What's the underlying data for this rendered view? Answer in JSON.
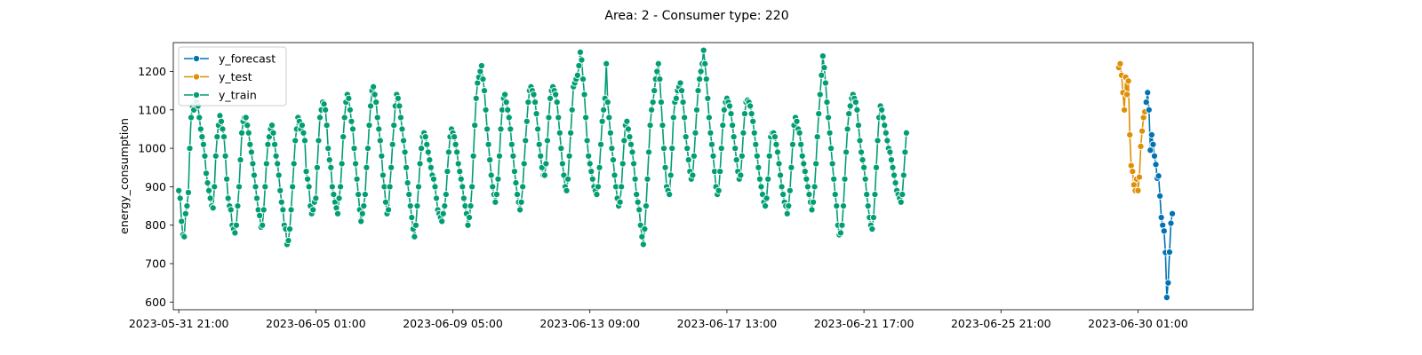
{
  "chart_data": {
    "type": "line",
    "title": "Area: 2 - Consumer type: 220",
    "xlabel": "",
    "ylabel": "energy_consumption",
    "x_type": "datetime",
    "x_tick_labels": [
      "2023-05-31 21:00",
      "2023-06-05 01:00",
      "2023-06-09 05:00",
      "2023-06-13 09:00",
      "2023-06-17 13:00",
      "2023-06-21 17:00",
      "2023-06-25 21:00",
      "2023-06-30 01:00"
    ],
    "xlim": [
      "2023-05-31 17:00",
      "2023-07-03 13:00"
    ],
    "ylim": [
      580,
      1275
    ],
    "y_ticks": [
      600,
      700,
      800,
      900,
      1000,
      1100,
      1200
    ],
    "legend_position": "upper-left",
    "grid": false,
    "series": [
      {
        "name": "y_forecast",
        "color": "#0173b2",
        "marker": "circle",
        "x_start": "2023-06-30 07:00",
        "x_step_hours": 1,
        "values": [
          1120,
          1145,
          1100,
          995,
          1035,
          1010,
          980,
          958,
          922,
          928,
          876,
          820,
          800,
          785,
          729,
          612,
          650,
          730,
          805,
          830
        ]
      },
      {
        "name": "y_test",
        "color": "#de8f05",
        "marker": "circle",
        "x_start": "2023-06-29 11:00",
        "x_step_hours": 1,
        "values": [
          1210,
          1220,
          1190,
          1145,
          1100,
          1185,
          1140,
          1175,
          1035,
          955,
          940,
          905,
          890,
          920,
          890,
          925,
          1005,
          1045,
          1080,
          1095
        ]
      },
      {
        "name": "y_train",
        "color": "#029e73",
        "marker": "circle",
        "x_start": "2023-05-31 21:00",
        "x_step_hours": 1,
        "values": [
          890,
          870,
          810,
          775,
          770,
          830,
          850,
          885,
          1000,
          1080,
          1110,
          1100,
          1115,
          1120,
          1110,
          1080,
          1050,
          1030,
          1010,
          980,
          935,
          910,
          890,
          870,
          850,
          845,
          900,
          980,
          1030,
          1060,
          1085,
          1070,
          1050,
          1030,
          980,
          920,
          870,
          850,
          840,
          800,
          790,
          780,
          800,
          850,
          900,
          970,
          1040,
          1070,
          1080,
          1080,
          1060,
          1040,
          1010,
          990,
          960,
          930,
          900,
          870,
          840,
          825,
          795,
          800,
          840,
          900,
          960,
          1010,
          1030,
          1050,
          1060,
          1040,
          1010,
          980,
          960,
          930,
          890,
          860,
          840,
          800,
          790,
          750,
          760,
          790,
          840,
          900,
          960,
          1020,
          1050,
          1080,
          1070,
          1050,
          1060,
          1040,
          1020,
          940,
          920,
          900,
          850,
          830,
          840,
          860,
          870,
          950,
          1020,
          1080,
          1100,
          1120,
          1115,
          1100,
          1060,
          1000,
          970,
          950,
          900,
          880,
          860,
          845,
          830,
          870,
          900,
          960,
          1030,
          1080,
          1120,
          1140,
          1130,
          1100,
          1070,
          1050,
          1000,
          960,
          920,
          880,
          840,
          810,
          830,
          850,
          880,
          950,
          1000,
          1060,
          1110,
          1150,
          1160,
          1140,
          1120,
          1080,
          1050,
          1020,
          980,
          930,
          900,
          860,
          830,
          840,
          900,
          950,
          1010,
          1060,
          1110,
          1140,
          1130,
          1110,
          1080,
          1050,
          1020,
          990,
          950,
          910,
          880,
          850,
          820,
          790,
          770,
          800,
          850,
          900,
          960,
          1000,
          1030,
          1040,
          1030,
          1010,
          990,
          970,
          950,
          930,
          920,
          900,
          870,
          840,
          830,
          820,
          810,
          830,
          850,
          880,
          940,
          990,
          1030,
          1050,
          1040,
          1030,
          1010,
          990,
          960,
          940,
          920,
          900,
          870,
          850,
          830,
          800,
          820,
          850,
          900,
          980,
          1060,
          1130,
          1170,
          1185,
          1200,
          1215,
          1180,
          1150,
          1100,
          1050,
          1010,
          970,
          930,
          900,
          880,
          860,
          880,
          920,
          980,
          1050,
          1100,
          1130,
          1140,
          1120,
          1100,
          1080,
          1050,
          1010,
          980,
          940,
          910,
          880,
          860,
          840,
          860,
          900,
          960,
          1020,
          1070,
          1120,
          1150,
          1160,
          1150,
          1140,
          1120,
          1090,
          1050,
          1010,
          980,
          950,
          930,
          930,
          960,
          1020,
          1080,
          1130,
          1150,
          1160,
          1150,
          1140,
          1120,
          1080,
          1040,
          1000,
          960,
          930,
          900,
          890,
          920,
          980,
          1040,
          1100,
          1160,
          1170,
          1180,
          1190,
          1215,
          1250,
          1230,
          1180,
          1140,
          1080,
          1020,
          980,
          960,
          940,
          920,
          900,
          890,
          880,
          900,
          950,
          1010,
          1070,
          1100,
          1130,
          1220,
          1120,
          1080,
          1040,
          1000,
          970,
          930,
          900,
          870,
          850,
          860,
          900,
          960,
          1020,
          1060,
          1070,
          1050,
          1030,
          1010,
          990,
          960,
          920,
          880,
          860,
          840,
          800,
          770,
          750,
          790,
          850,
          920,
          990,
          1060,
          1100,
          1120,
          1150,
          1180,
          1200,
          1220,
          1180,
          1120,
          1060,
          1000,
          950,
          900,
          890,
          880,
          930,
          1000,
          1080,
          1120,
          1130,
          1150,
          1160,
          1170,
          1150,
          1120,
          1080,
          1030,
          1000,
          970,
          940,
          920,
          930,
          980,
          1040,
          1100,
          1150,
          1180,
          1200,
          1220,
          1255,
          1220,
          1180,
          1130,
          1080,
          1040,
          1010,
          980,
          940,
          900,
          880,
          890,
          940,
          1000,
          1060,
          1100,
          1120,
          1130,
          1120,
          1110,
          1090,
          1060,
          1030,
          1000,
          970,
          940,
          920,
          930,
          980,
          1040,
          1090,
          1120,
          1125,
          1120,
          1110,
          1090,
          1070,
          1040,
          1010,
          980,
          950,
          920,
          900,
          880,
          860,
          850,
          870,
          920,
          980,
          1030,
          1040,
          1040,
          1030,
          1010,
          990,
          960,
          930,
          900,
          880,
          860,
          850,
          830,
          850,
          890,
          950,
          1010,
          1060,
          1080,
          1070,
          1050,
          1040,
          1010,
          980,
          960,
          940,
          920,
          900,
          880,
          860,
          840,
          860,
          900,
          960,
          1030,
          1090,
          1140,
          1190,
          1240,
          1210,
          1170,
          1120,
          1080,
          1040,
          1000,
          960,
          920,
          880,
          850,
          800,
          775,
          780,
          800,
          850,
          920,
          990,
          1050,
          1090,
          1110,
          1130,
          1140,
          1130,
          1120,
          1100,
          1060,
          1020,
          990,
          970,
          950,
          920,
          880,
          850,
          820,
          800,
          790,
          820,
          880,
          950,
          1020,
          1080,
          1110,
          1100,
          1080,
          1060,
          1040,
          1020,
          1000,
          990,
          970,
          950,
          930,
          910,
          890,
          880,
          870,
          860,
          880,
          930,
          990,
          1040
        ]
      }
    ]
  }
}
